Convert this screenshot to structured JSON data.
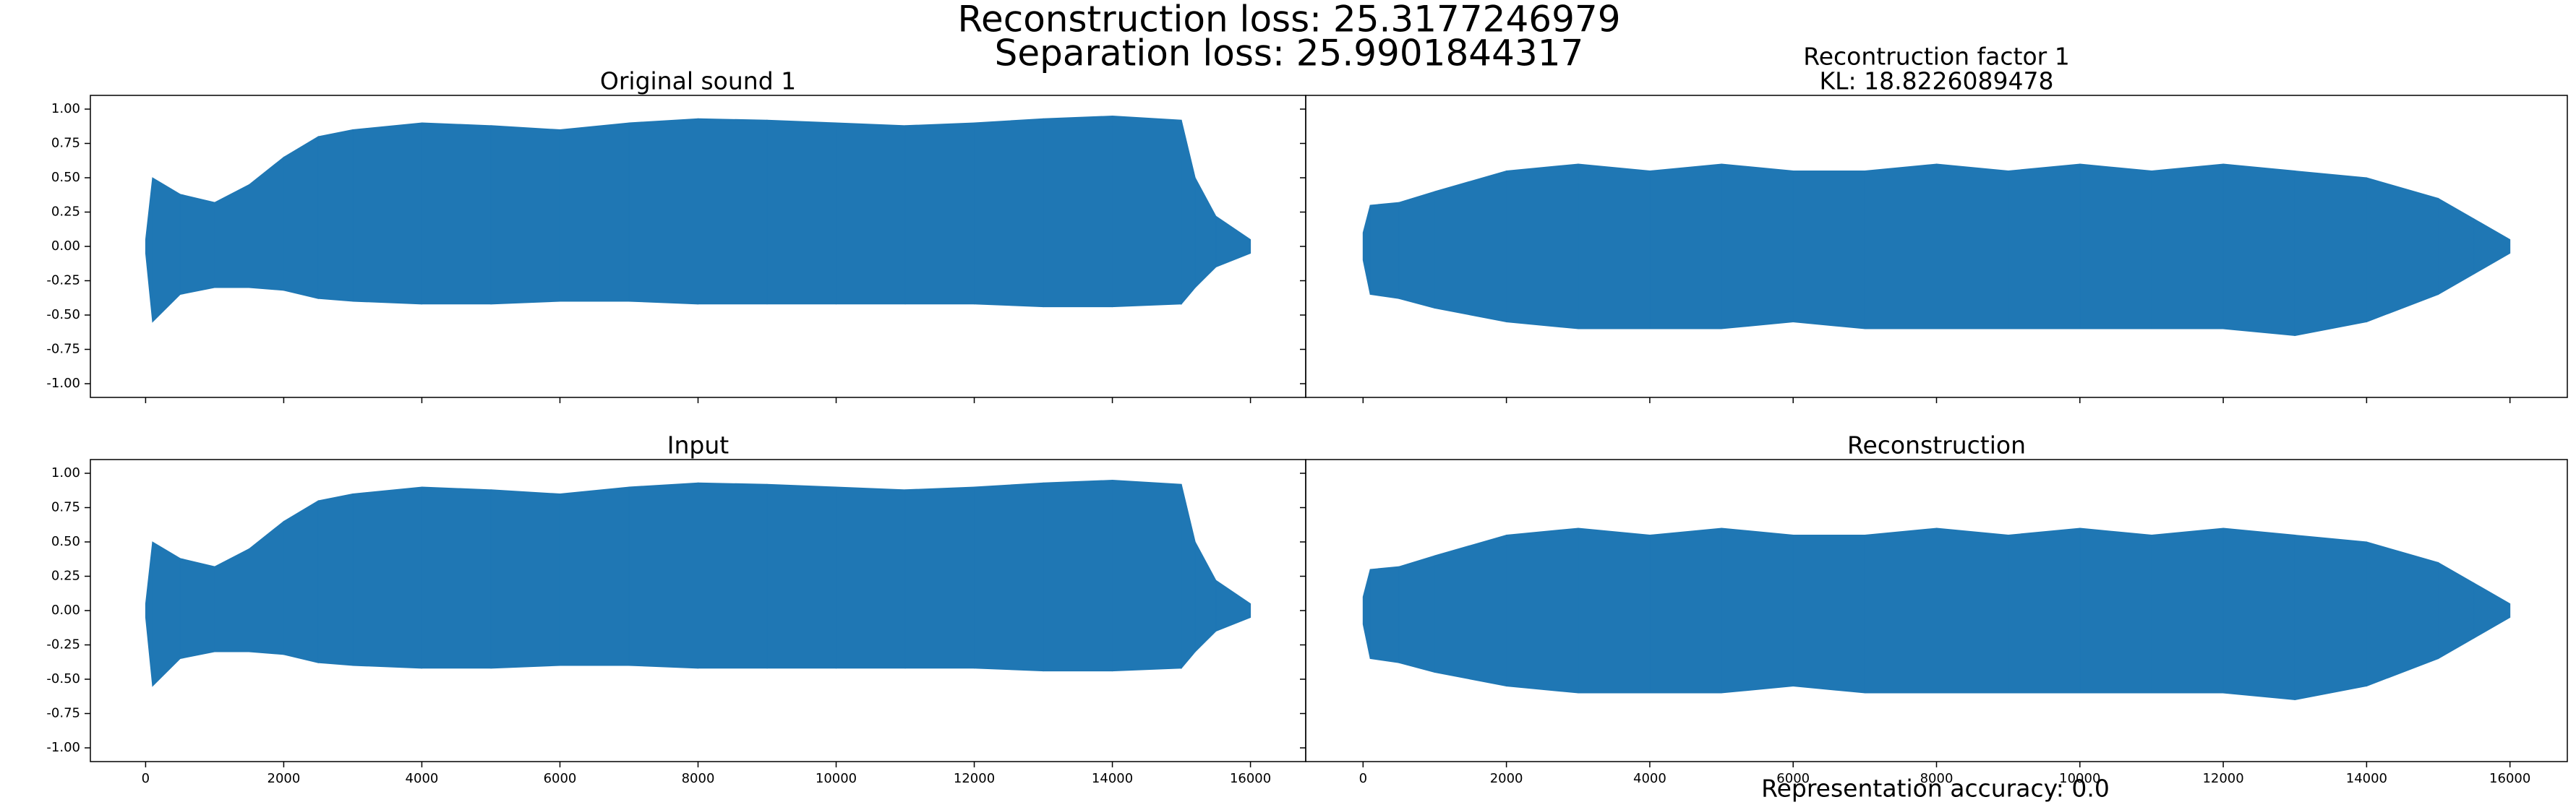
{
  "suptitle": [
    "Reconstruction loss: 25.3177246979",
    "Separation loss: 25.9901844317"
  ],
  "footer": "Representation accuracy: 0.0",
  "chart_data": [
    {
      "type": "envelope",
      "title": [
        "Original sound 1"
      ],
      "color": "#1f77b4",
      "x": [
        0,
        100,
        500,
        1000,
        1500,
        2000,
        2500,
        3000,
        4000,
        5000,
        6000,
        7000,
        8000,
        9000,
        10000,
        11000,
        12000,
        13000,
        14000,
        15000,
        15200,
        15500,
        16000
      ],
      "upper": [
        0.05,
        0.5,
        0.38,
        0.32,
        0.45,
        0.65,
        0.8,
        0.85,
        0.9,
        0.88,
        0.85,
        0.9,
        0.93,
        0.92,
        0.9,
        0.88,
        0.9,
        0.93,
        0.95,
        0.92,
        0.5,
        0.22,
        0.05
      ],
      "lower": [
        -0.05,
        -0.55,
        -0.35,
        -0.3,
        -0.3,
        -0.32,
        -0.38,
        -0.4,
        -0.42,
        -0.42,
        -0.4,
        -0.4,
        -0.42,
        -0.42,
        -0.42,
        -0.42,
        -0.42,
        -0.44,
        -0.44,
        -0.42,
        -0.3,
        -0.15,
        -0.05
      ],
      "xlim": [
        -800,
        16800
      ],
      "ylim": [
        -1.1,
        1.1
      ],
      "xticks": [
        0,
        2000,
        4000,
        6000,
        8000,
        10000,
        12000,
        14000,
        16000
      ],
      "yticks": [
        {
          "value": -1,
          "label": "-1.00"
        },
        {
          "value": -0.75,
          "label": "-0.75"
        },
        {
          "value": -0.5,
          "label": "-0.50"
        },
        {
          "value": -0.25,
          "label": "-0.25"
        },
        {
          "value": 0,
          "label": "0.00"
        },
        {
          "value": 0.25,
          "label": "0.25"
        },
        {
          "value": 0.5,
          "label": "0.50"
        },
        {
          "value": 0.75,
          "label": "0.75"
        },
        {
          "value": 1,
          "label": "1.00"
        }
      ],
      "show_xtick_labels": false,
      "show_ytick_labels": true
    },
    {
      "type": "envelope",
      "title": [
        "Recontruction factor 1",
        "KL: 18.8226089478"
      ],
      "color": "#1f77b4",
      "x": [
        0,
        100,
        500,
        1000,
        2000,
        3000,
        4000,
        5000,
        6000,
        7000,
        8000,
        9000,
        10000,
        11000,
        12000,
        13000,
        14000,
        15000,
        15500,
        16000
      ],
      "upper": [
        0.1,
        0.3,
        0.32,
        0.4,
        0.55,
        0.6,
        0.55,
        0.6,
        0.55,
        0.55,
        0.6,
        0.55,
        0.6,
        0.55,
        0.6,
        0.55,
        0.5,
        0.35,
        0.2,
        0.05
      ],
      "lower": [
        -0.1,
        -0.35,
        -0.38,
        -0.45,
        -0.55,
        -0.6,
        -0.6,
        -0.6,
        -0.55,
        -0.6,
        -0.6,
        -0.6,
        -0.6,
        -0.6,
        -0.6,
        -0.65,
        -0.55,
        -0.35,
        -0.2,
        -0.05
      ],
      "xlim": [
        -800,
        16800
      ],
      "ylim": [
        -1.1,
        1.1
      ],
      "xticks": [
        0,
        2000,
        4000,
        6000,
        8000,
        10000,
        12000,
        14000,
        16000
      ],
      "yticks": [
        -1,
        -0.75,
        -0.5,
        -0.25,
        0,
        0.25,
        0.5,
        0.75,
        1
      ],
      "show_xtick_labels": false,
      "show_ytick_labels": false
    },
    {
      "type": "envelope",
      "title": [
        "Input"
      ],
      "color": "#1f77b4",
      "x": [
        0,
        100,
        500,
        1000,
        1500,
        2000,
        2500,
        3000,
        4000,
        5000,
        6000,
        7000,
        8000,
        9000,
        10000,
        11000,
        12000,
        13000,
        14000,
        15000,
        15200,
        15500,
        16000
      ],
      "upper": [
        0.05,
        0.5,
        0.38,
        0.32,
        0.45,
        0.65,
        0.8,
        0.85,
        0.9,
        0.88,
        0.85,
        0.9,
        0.93,
        0.92,
        0.9,
        0.88,
        0.9,
        0.93,
        0.95,
        0.92,
        0.5,
        0.22,
        0.05
      ],
      "lower": [
        -0.05,
        -0.55,
        -0.35,
        -0.3,
        -0.3,
        -0.32,
        -0.38,
        -0.4,
        -0.42,
        -0.42,
        -0.4,
        -0.4,
        -0.42,
        -0.42,
        -0.42,
        -0.42,
        -0.42,
        -0.44,
        -0.44,
        -0.42,
        -0.3,
        -0.15,
        -0.05
      ],
      "xlim": [
        -800,
        16800
      ],
      "ylim": [
        -1.1,
        1.1
      ],
      "xticks": [
        0,
        2000,
        4000,
        6000,
        8000,
        10000,
        12000,
        14000,
        16000
      ],
      "yticks": [
        {
          "value": -1,
          "label": "-1.00"
        },
        {
          "value": -0.75,
          "label": "-0.75"
        },
        {
          "value": -0.5,
          "label": "-0.50"
        },
        {
          "value": -0.25,
          "label": "-0.25"
        },
        {
          "value": 0,
          "label": "0.00"
        },
        {
          "value": 0.25,
          "label": "0.25"
        },
        {
          "value": 0.5,
          "label": "0.50"
        },
        {
          "value": 0.75,
          "label": "0.75"
        },
        {
          "value": 1,
          "label": "1.00"
        }
      ],
      "show_xtick_labels": true,
      "show_ytick_labels": true
    },
    {
      "type": "envelope",
      "title": [
        "Reconstruction"
      ],
      "color": "#1f77b4",
      "x": [
        0,
        100,
        500,
        1000,
        2000,
        3000,
        4000,
        5000,
        6000,
        7000,
        8000,
        9000,
        10000,
        11000,
        12000,
        13000,
        14000,
        15000,
        15500,
        16000
      ],
      "upper": [
        0.1,
        0.3,
        0.32,
        0.4,
        0.55,
        0.6,
        0.55,
        0.6,
        0.55,
        0.55,
        0.6,
        0.55,
        0.6,
        0.55,
        0.6,
        0.55,
        0.5,
        0.35,
        0.2,
        0.05
      ],
      "lower": [
        -0.1,
        -0.35,
        -0.38,
        -0.45,
        -0.55,
        -0.6,
        -0.6,
        -0.6,
        -0.55,
        -0.6,
        -0.6,
        -0.6,
        -0.6,
        -0.6,
        -0.6,
        -0.65,
        -0.55,
        -0.35,
        -0.2,
        -0.05
      ],
      "xlim": [
        -800,
        16800
      ],
      "ylim": [
        -1.1,
        1.1
      ],
      "xticks": [
        0,
        2000,
        4000,
        6000,
        8000,
        10000,
        12000,
        14000,
        16000
      ],
      "yticks": [
        -1,
        -0.75,
        -0.5,
        -0.25,
        0,
        0.25,
        0.5,
        0.75,
        1
      ],
      "show_xtick_labels": true,
      "show_ytick_labels": false
    }
  ]
}
